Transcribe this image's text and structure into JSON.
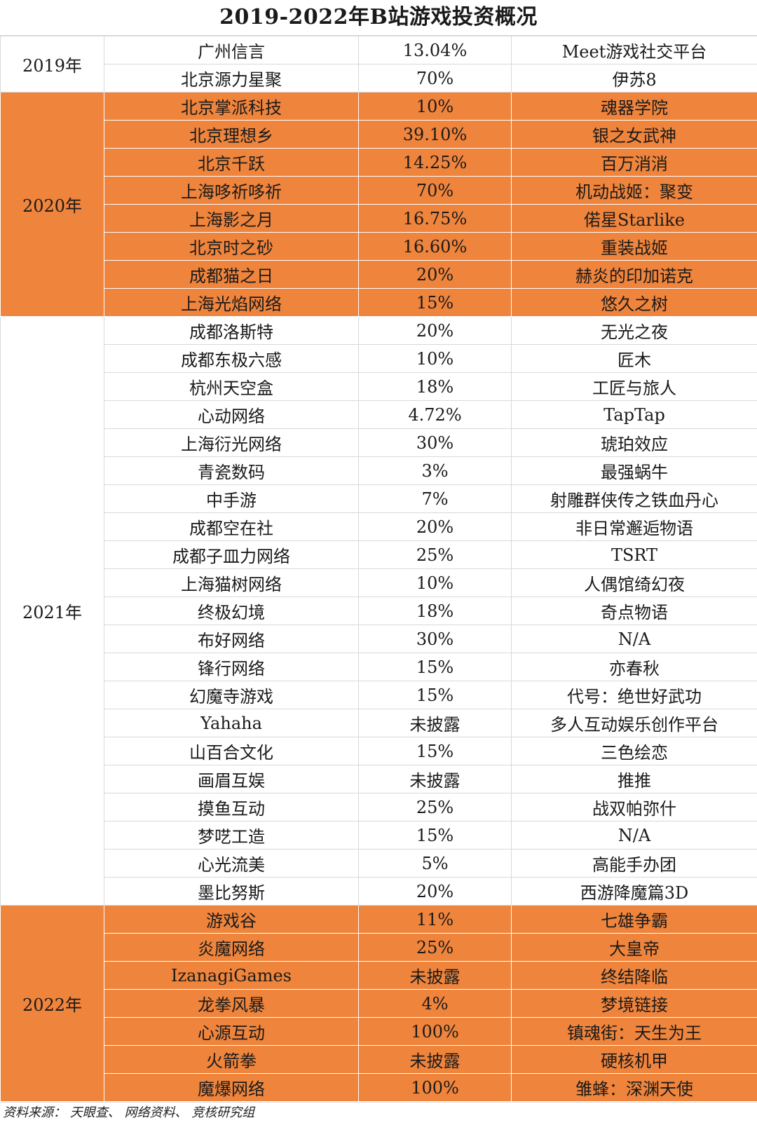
{
  "title": "2019-2022年B站游戏投资概况",
  "source": "资料来源： 天眼查、 网络资料、 竞核研究组",
  "colors": {
    "highlight": "#ef843c",
    "plain": "#ffffff",
    "grid": "#d9d9d9"
  },
  "groups": [
    {
      "year": "2019年",
      "highlight": false,
      "rows": [
        [
          "广州信言",
          "13.04%",
          "Meet游戏社交平台"
        ],
        [
          "北京源力星聚",
          "70%",
          "伊苏8"
        ]
      ]
    },
    {
      "year": "2020年",
      "highlight": true,
      "rows": [
        [
          "北京掌派科技",
          "10%",
          "魂器学院"
        ],
        [
          "北京理想乡",
          "39.10%",
          "银之女武神"
        ],
        [
          "北京千跃",
          "14.25%",
          "百万消消"
        ],
        [
          "上海哆祈哆祈",
          "70%",
          "机动战姬：聚变"
        ],
        [
          "上海影之月",
          "16.75%",
          "偌星Starlike"
        ],
        [
          "北京时之砂",
          "16.60%",
          "重装战姬"
        ],
        [
          "成都猫之日",
          "20%",
          "赫炎的印加诺克"
        ],
        [
          "上海光焰网络",
          "15%",
          "悠久之树"
        ]
      ]
    },
    {
      "year": "2021年",
      "highlight": false,
      "rows": [
        [
          "成都洛斯特",
          "20%",
          "无光之夜"
        ],
        [
          "成都东极六感",
          "10%",
          "匠木"
        ],
        [
          "杭州天空盒",
          "18%",
          "工匠与旅人"
        ],
        [
          "心动网络",
          "4.72%",
          "TapTap"
        ],
        [
          "上海衍光网络",
          "30%",
          "琥珀效应"
        ],
        [
          "青瓷数码",
          "3%",
          "最强蜗牛"
        ],
        [
          "中手游",
          "7%",
          "射雕群侠传之铁血丹心"
        ],
        [
          "成都空在社",
          "20%",
          "非日常邂逅物语"
        ],
        [
          "成都子皿力网络",
          "25%",
          "TSRT"
        ],
        [
          "上海猫树网络",
          "10%",
          "人偶馆绮幻夜"
        ],
        [
          "终极幻境",
          "18%",
          "奇点物语"
        ],
        [
          "布好网络",
          "30%",
          "N/A"
        ],
        [
          "锋行网络",
          "15%",
          "亦春秋"
        ],
        [
          "幻魔寺游戏",
          "15%",
          "代号：绝世好武功"
        ],
        [
          "Yahaha",
          "未披露",
          "多人互动娱乐创作平台"
        ],
        [
          "山百合文化",
          "15%",
          "三色绘恋"
        ],
        [
          "画眉互娱",
          "未披露",
          "推推"
        ],
        [
          "摸鱼互动",
          "25%",
          "战双帕弥什"
        ],
        [
          "梦呓工造",
          "15%",
          "N/A"
        ],
        [
          "心光流美",
          "5%",
          "高能手办团"
        ],
        [
          "墨比努斯",
          "20%",
          "西游降魔篇3D"
        ]
      ]
    },
    {
      "year": "2022年",
      "highlight": true,
      "rows": [
        [
          "游戏谷",
          "11%",
          "七雄争霸"
        ],
        [
          "炎魔网络",
          "25%",
          "大皇帝"
        ],
        [
          "IzanagiGames",
          "未披露",
          "终结降临"
        ],
        [
          "龙拳风暴",
          "4%",
          "梦境链接"
        ],
        [
          "心源互动",
          "100%",
          "镇魂街：天生为王"
        ],
        [
          "火箭拳",
          "未披露",
          "硬核机甲"
        ],
        [
          "魔爆网络",
          "100%",
          "雏蜂：深渊天使"
        ]
      ]
    }
  ]
}
